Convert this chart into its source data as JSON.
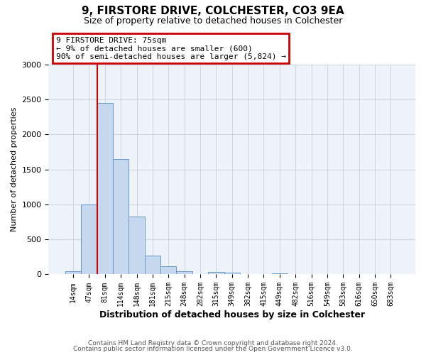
{
  "title": "9, FIRSTORE DRIVE, COLCHESTER, CO3 9EA",
  "subtitle": "Size of property relative to detached houses in Colchester",
  "xlabel": "Distribution of detached houses by size in Colchester",
  "ylabel": "Number of detached properties",
  "bar_labels": [
    "14sqm",
    "47sqm",
    "81sqm",
    "114sqm",
    "148sqm",
    "181sqm",
    "215sqm",
    "248sqm",
    "282sqm",
    "315sqm",
    "349sqm",
    "382sqm",
    "415sqm",
    "449sqm",
    "482sqm",
    "516sqm",
    "549sqm",
    "583sqm",
    "616sqm",
    "650sqm",
    "683sqm"
  ],
  "bar_values": [
    50,
    1000,
    2450,
    1650,
    830,
    265,
    120,
    50,
    5,
    40,
    30,
    5,
    0,
    20,
    0,
    0,
    0,
    0,
    0,
    0,
    5
  ],
  "bar_color": "#c5d8ee",
  "bar_edge_color": "#6699cc",
  "vline_color": "#cc0000",
  "annotation_title": "9 FIRSTORE DRIVE: 75sqm",
  "annotation_line1": "← 9% of detached houses are smaller (600)",
  "annotation_line2": "90% of semi-detached houses are larger (5,824) →",
  "annotation_box_color": "#cc0000",
  "ylim": [
    0,
    3000
  ],
  "yticks": [
    0,
    500,
    1000,
    1500,
    2000,
    2500,
    3000
  ],
  "footer1": "Contains HM Land Registry data © Crown copyright and database right 2024.",
  "footer2": "Contains public sector information licensed under the Open Government Licence v3.0.",
  "bg_color": "#ffffff",
  "plot_bg_color": "#eef3fa",
  "grid_color": "#c5d0de"
}
